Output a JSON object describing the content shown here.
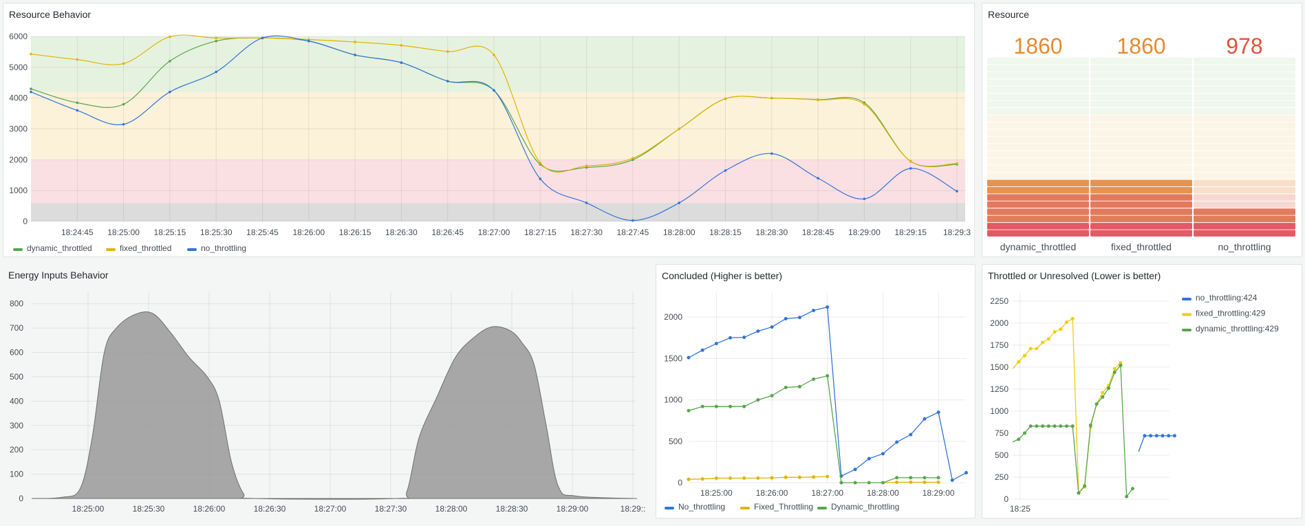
{
  "panels": {
    "resource_behavior": {
      "title": "Resource Behavior"
    },
    "resource": {
      "title": "Resource"
    },
    "energy": {
      "title": "Energy Inputs Behavior"
    },
    "concluded": {
      "title": "Concluded (Higher is better)"
    },
    "throttled": {
      "title": "Throttled or Unresolved (Lower is better)"
    }
  },
  "colors": {
    "green": "#56a64b",
    "yellow": "#e0b400",
    "blue": "#3274d9",
    "gray_fill": "#999999",
    "orange": "#e68a2e",
    "red": "#e0523b"
  },
  "chart_data": [
    {
      "id": "resource_behavior",
      "type": "line",
      "title": "Resource Behavior",
      "ylim": [
        0,
        6000
      ],
      "y_ticks": [
        "0",
        "1000",
        "2000",
        "3000",
        "4000",
        "5000",
        "6000"
      ],
      "x_ticks": [
        "18:24:45",
        "18:25:00",
        "18:25:15",
        "18:25:30",
        "18:25:45",
        "18:26:00",
        "18:26:15",
        "18:26:30",
        "18:26:45",
        "18:27:00",
        "18:27:15",
        "18:27:30",
        "18:27:45",
        "18:28:00",
        "18:28:15",
        "18:28:30",
        "18:28:45",
        "18:29:00",
        "18:29:15",
        "18:29:3"
      ],
      "x": [
        "18:24:30",
        "18:24:45",
        "18:25:00",
        "18:25:15",
        "18:25:30",
        "18:25:45",
        "18:26:00",
        "18:26:15",
        "18:26:30",
        "18:26:45",
        "18:27:00",
        "18:27:15",
        "18:27:30",
        "18:27:45",
        "18:28:00",
        "18:28:15",
        "18:28:30",
        "18:28:45",
        "18:29:00",
        "18:29:15",
        "18:29:30"
      ],
      "thresholds": [
        {
          "from": 0,
          "to": 600,
          "color": "#dcdcdc"
        },
        {
          "from": 600,
          "to": 2000,
          "color": "#fbe0e3"
        },
        {
          "from": 2000,
          "to": 4200,
          "color": "#fcf2da"
        },
        {
          "from": 4200,
          "to": 6000,
          "color": "#e6f2e0"
        }
      ],
      "series": [
        {
          "name": "dynamic_throttled",
          "color": "#56a64b",
          "values": [
            4300,
            3850,
            3800,
            5200,
            5850,
            5950,
            5850,
            5400,
            5150,
            4550,
            4250,
            1850,
            1750,
            2000,
            3000,
            3980,
            4000,
            3950,
            3850,
            1950,
            1850
          ]
        },
        {
          "name": "fixed_throttled",
          "color": "#e0b400",
          "values": [
            5430,
            5250,
            5120,
            5990,
            5950,
            5950,
            5900,
            5820,
            5710,
            5510,
            5400,
            1900,
            1800,
            2050,
            3000,
            3980,
            4000,
            3940,
            3800,
            1950,
            1880
          ]
        },
        {
          "name": "no_throttling",
          "color": "#3274d9",
          "values": [
            4200,
            3600,
            3150,
            4200,
            4850,
            5950,
            5850,
            5400,
            5150,
            4550,
            4250,
            1380,
            600,
            30,
            600,
            1650,
            2200,
            1400,
            730,
            1720,
            980
          ]
        }
      ]
    },
    {
      "id": "resource",
      "type": "bar",
      "title": "Resource",
      "categories": [
        "dynamic_throttled",
        "fixed_throttled",
        "no_throttling"
      ],
      "values": [
        1860,
        1860,
        978
      ],
      "display": [
        "1860",
        "1860",
        "978"
      ],
      "value_colors": [
        "#e68a2e",
        "#e68a2e",
        "#e0523b"
      ],
      "max": 6000
    },
    {
      "id": "energy",
      "type": "area",
      "title": "Energy Inputs Behavior",
      "ylim": [
        0,
        850
      ],
      "y_ticks": [
        "0",
        "100",
        "200",
        "300",
        "400",
        "500",
        "600",
        "700",
        "800"
      ],
      "x_ticks": [
        "18:25:00",
        "18:25:30",
        "18:26:00",
        "18:26:30",
        "18:27:00",
        "18:27:30",
        "18:28:00",
        "18:28:30",
        "18:29:00",
        "18:29::"
      ],
      "x": [
        "18:24:30",
        "18:24:45",
        "18:24:54",
        "18:25:00",
        "18:25:06",
        "18:25:12",
        "18:25:21",
        "18:25:30",
        "18:25:39",
        "18:25:48",
        "18:25:57",
        "18:26:03",
        "18:26:09",
        "18:26:15",
        "18:26:21",
        "18:27:30",
        "18:27:36",
        "18:27:42",
        "18:27:51",
        "18:28:00",
        "18:28:09",
        "18:28:18",
        "18:28:27",
        "18:28:33",
        "18:28:39",
        "18:28:45",
        "18:28:51",
        "18:29:00",
        "18:29:30"
      ],
      "series": [
        {
          "name": "energy",
          "values": [
            0,
            5,
            40,
            250,
            600,
            700,
            755,
            760,
            680,
            580,
            500,
            400,
            150,
            20,
            0,
            0,
            30,
            250,
            420,
            580,
            660,
            705,
            690,
            640,
            550,
            300,
            50,
            10,
            0
          ]
        }
      ]
    },
    {
      "id": "concluded",
      "type": "line",
      "title": "Concluded (Higher is better)",
      "ylim": [
        0,
        2300
      ],
      "y_ticks": [
        "0",
        "500",
        "1000",
        "1500",
        "2000"
      ],
      "x_ticks": [
        "18:25:00",
        "18:26:00",
        "18:27:00",
        "18:28:00",
        "18:29:00"
      ],
      "series": [
        {
          "name": "No_throttling",
          "color": "#3274d9",
          "points": [
            [
              "18:24:30",
              1510
            ],
            [
              "18:24:45",
              1600
            ],
            [
              "18:25:00",
              1680
            ],
            [
              "18:25:15",
              1750
            ],
            [
              "18:25:30",
              1755
            ],
            [
              "18:25:45",
              1830
            ],
            [
              "18:26:00",
              1880
            ],
            [
              "18:26:15",
              1980
            ],
            [
              "18:26:30",
              1995
            ],
            [
              "18:26:45",
              2080
            ],
            [
              "18:27:00",
              2120
            ],
            [
              "18:27:15",
              80
            ],
            [
              "18:27:30",
              160
            ],
            [
              "18:27:45",
              290
            ],
            [
              "18:28:00",
              350
            ],
            [
              "18:28:15",
              490
            ],
            [
              "18:28:30",
              580
            ],
            [
              "18:28:45",
              770
            ],
            [
              "18:29:00",
              850
            ],
            [
              "18:29:15",
              30
            ],
            [
              "18:29:30",
              120
            ]
          ]
        },
        {
          "name": "Fixed_Throttling",
          "color": "#e0b400",
          "points": [
            [
              "18:24:30",
              40
            ],
            [
              "18:24:45",
              45
            ],
            [
              "18:25:00",
              55
            ],
            [
              "18:25:15",
              55
            ],
            [
              "18:25:30",
              55
            ],
            [
              "18:25:45",
              55
            ],
            [
              "18:26:00",
              58
            ],
            [
              "18:26:15",
              65
            ],
            [
              "18:26:30",
              65
            ],
            [
              "18:26:45",
              68
            ],
            [
              "18:27:00",
              75
            ],
            [
              "18:27:15",
              null
            ],
            [
              "18:27:30",
              null
            ],
            [
              "18:27:45",
              null
            ],
            [
              "18:28:00",
              0
            ],
            [
              "18:28:15",
              5
            ],
            [
              "18:28:30",
              5
            ],
            [
              "18:28:45",
              5
            ],
            [
              "18:29:00",
              5
            ]
          ]
        },
        {
          "name": "Dynamic_throttling",
          "color": "#56a64b",
          "points": [
            [
              "18:24:30",
              870
            ],
            [
              "18:24:45",
              920
            ],
            [
              "18:25:00",
              920
            ],
            [
              "18:25:15",
              920
            ],
            [
              "18:25:30",
              920
            ],
            [
              "18:25:45",
              1000
            ],
            [
              "18:26:00",
              1050
            ],
            [
              "18:26:15",
              1150
            ],
            [
              "18:26:30",
              1160
            ],
            [
              "18:26:45",
              1250
            ],
            [
              "18:27:00",
              1290
            ],
            [
              "18:27:15",
              0
            ],
            [
              "18:27:30",
              0
            ],
            [
              "18:27:45",
              0
            ],
            [
              "18:28:00",
              0
            ],
            [
              "18:28:15",
              60
            ],
            [
              "18:28:30",
              60
            ],
            [
              "18:28:45",
              60
            ],
            [
              "18:29:00",
              60
            ]
          ]
        }
      ]
    },
    {
      "id": "throttled",
      "type": "line",
      "title": "Throttled or Unresolved (Lower is better)",
      "ylim": [
        0,
        2350
      ],
      "y_ticks": [
        "0",
        "250",
        "500",
        "750",
        "1000",
        "1250",
        "1500",
        "1750",
        "2000",
        "2250"
      ],
      "x_ticks": [
        "18:25"
      ],
      "legend": [
        "no_throttling:424",
        "fixed_throttling:429",
        "dynamic_throttling:429"
      ],
      "series": [
        {
          "name": "no_throttling",
          "color": "#3274d9",
          "points": [
            [
              "18:27:38",
              540
            ],
            [
              "18:27:46",
              720
            ],
            [
              "18:27:54",
              720
            ],
            [
              "18:28:02",
              720
            ],
            [
              "18:28:10",
              720
            ],
            [
              "18:28:18",
              720
            ],
            [
              "18:28:26",
              720
            ]
          ]
        },
        {
          "name": "fixed_throttling",
          "color": "#f2cc0c",
          "points": [
            [
              "18:24:50",
              1480
            ],
            [
              "18:24:58",
              1560
            ],
            [
              "18:25:06",
              1630
            ],
            [
              "18:25:14",
              1710
            ],
            [
              "18:25:22",
              1710
            ],
            [
              "18:25:30",
              1780
            ],
            [
              "18:25:38",
              1820
            ],
            [
              "18:25:46",
              1900
            ],
            [
              "18:25:54",
              1930
            ],
            [
              "18:26:02",
              2010
            ],
            [
              "18:26:10",
              2050
            ],
            [
              "18:26:18",
              70
            ],
            [
              "18:26:26",
              140
            ],
            [
              "18:26:34",
              820
            ],
            [
              "18:26:42",
              1080
            ],
            [
              "18:26:50",
              1210
            ],
            [
              "18:26:58",
              1290
            ],
            [
              "18:27:06",
              1480
            ],
            [
              "18:27:14",
              1550
            ]
          ]
        },
        {
          "name": "dynamic_throttling",
          "color": "#56a64b",
          "points": [
            [
              "18:24:50",
              650
            ],
            [
              "18:24:58",
              680
            ],
            [
              "18:25:06",
              750
            ],
            [
              "18:25:14",
              830
            ],
            [
              "18:25:22",
              830
            ],
            [
              "18:25:30",
              830
            ],
            [
              "18:25:38",
              830
            ],
            [
              "18:25:46",
              830
            ],
            [
              "18:25:54",
              830
            ],
            [
              "18:26:02",
              830
            ],
            [
              "18:26:10",
              830
            ],
            [
              "18:26:18",
              70
            ],
            [
              "18:26:26",
              150
            ],
            [
              "18:26:34",
              840
            ],
            [
              "18:26:42",
              1080
            ],
            [
              "18:26:50",
              1160
            ],
            [
              "18:26:58",
              1260
            ],
            [
              "18:27:06",
              1440
            ],
            [
              "18:27:14",
              1520
            ],
            [
              "18:27:22",
              30
            ],
            [
              "18:27:30",
              120
            ]
          ]
        }
      ]
    }
  ]
}
